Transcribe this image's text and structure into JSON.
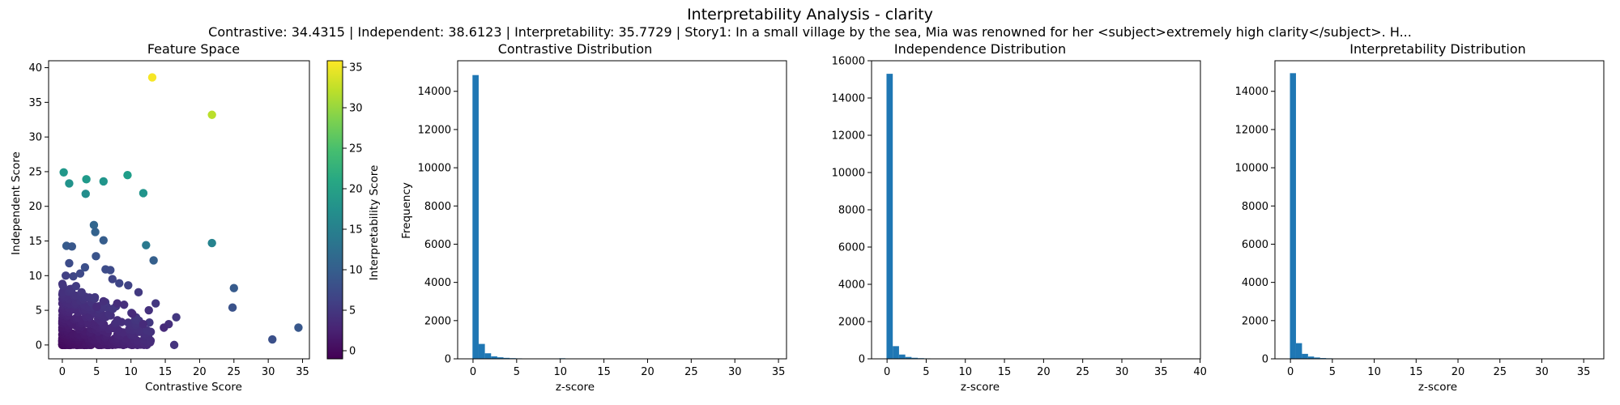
{
  "figure": {
    "title": "Interpretability Analysis - clarity",
    "subtitle": "Contrastive: 34.4315 | Independent: 38.6123 | Interpretability: 35.7729 | Story1: In a small village by the sea, Mia was renowned for her <subject>extremely high clarity</subject>. H..."
  },
  "colors": {
    "bar": "#1f77b4",
    "colormap": "viridis"
  },
  "chart_data": [
    {
      "type": "scatter",
      "title": "Feature Space",
      "xlabel": "Contrastive Score",
      "ylabel": "Independent Score",
      "xlim": [
        -2,
        36
      ],
      "ylim": [
        -2,
        41
      ],
      "xticks": [
        0,
        5,
        10,
        15,
        20,
        25,
        30,
        35
      ],
      "yticks": [
        0,
        5,
        10,
        15,
        20,
        25,
        30,
        35,
        40
      ],
      "colorbar": {
        "label": "Interpretability Score",
        "range": [
          -1,
          35.8
        ],
        "ticks": [
          0,
          5,
          10,
          15,
          20,
          25,
          30,
          35
        ]
      },
      "points": [
        [
          13.1,
          38.6,
          35.4
        ],
        [
          21.8,
          33.2,
          32.0
        ],
        [
          0.2,
          24.9,
          18.5
        ],
        [
          3.5,
          23.9,
          18.8
        ],
        [
          6.0,
          23.6,
          18.2
        ],
        [
          9.5,
          24.5,
          19.5
        ],
        [
          1.0,
          23.3,
          17.8
        ],
        [
          3.4,
          21.8,
          17.0
        ],
        [
          11.8,
          21.9,
          18.0
        ],
        [
          21.8,
          14.7,
          15.5
        ],
        [
          4.6,
          17.3,
          11.0
        ],
        [
          4.8,
          16.3,
          10.5
        ],
        [
          12.2,
          14.4,
          14.0
        ],
        [
          13.3,
          12.2,
          10.0
        ],
        [
          0.6,
          14.3,
          9.5
        ],
        [
          1.4,
          14.2,
          9.0
        ],
        [
          6.0,
          15.1,
          9.8
        ],
        [
          4.9,
          12.8,
          8.5
        ],
        [
          2.6,
          10.3,
          7.0
        ],
        [
          1.6,
          9.9,
          6.8
        ],
        [
          6.3,
          10.9,
          7.4
        ],
        [
          7.0,
          10.8,
          7.3
        ],
        [
          8.3,
          8.9,
          6.6
        ],
        [
          9.6,
          8.6,
          6.3
        ],
        [
          11.1,
          7.6,
          5.2
        ],
        [
          7.3,
          9.5,
          6.5
        ],
        [
          25.0,
          8.2,
          9.5
        ],
        [
          24.8,
          5.4,
          8.3
        ],
        [
          30.6,
          0.8,
          8.0
        ],
        [
          34.4,
          2.5,
          9.0
        ],
        [
          16.6,
          4.0,
          5.0
        ],
        [
          15.5,
          3.0,
          4.0
        ],
        [
          16.3,
          0.0,
          4.5
        ],
        [
          13.6,
          6.0,
          5.0
        ],
        [
          12.6,
          5.0,
          4.2
        ],
        [
          11.8,
          3.0,
          3.5
        ],
        [
          14.8,
          2.5,
          3.5
        ],
        [
          10.2,
          4.5,
          3.5
        ],
        [
          9.0,
          5.8,
          4.0
        ],
        [
          8.0,
          6.0,
          3.8
        ],
        [
          6.0,
          6.3,
          4.0
        ],
        [
          5.0,
          5.5,
          3.5
        ],
        [
          0.5,
          10.0,
          6.0
        ],
        [
          1.0,
          11.8,
          7.5
        ],
        [
          3.3,
          11.2,
          7.8
        ],
        [
          2.0,
          8.5,
          5.5
        ]
      ],
      "cluster": {
        "x_range": [
          0,
          13
        ],
        "y_range": [
          0,
          9
        ],
        "count": 450,
        "z_range": [
          0,
          6
        ]
      }
    },
    {
      "type": "bar",
      "title": "Contrastive Distribution",
      "xlabel": "z-score",
      "ylabel": "Frequency",
      "xlim": [
        -1.76,
        35.92
      ],
      "ylim": [
        0,
        15600
      ],
      "xticks": [
        0,
        5,
        10,
        15,
        20,
        25,
        30,
        35
      ],
      "yticks": [
        0,
        2000,
        4000,
        6000,
        8000,
        10000,
        12000,
        14000
      ],
      "bin_start": -0.06,
      "bin_width": 0.71,
      "values": [
        14850,
        780,
        290,
        130,
        80,
        50,
        35,
        25,
        18,
        14,
        9,
        7,
        5,
        4,
        30,
        3,
        2,
        2,
        2,
        1,
        1,
        1,
        1,
        1,
        1,
        1,
        1,
        1,
        1,
        1,
        1,
        1,
        1,
        1,
        1,
        1,
        1,
        1,
        1,
        1,
        1,
        1,
        1,
        1,
        1,
        1,
        1,
        1,
        1,
        1
      ]
    },
    {
      "type": "bar",
      "title": "Independence Distribution",
      "xlabel": "z-score",
      "ylabel": "",
      "xlim": [
        -1.98,
        40.04
      ],
      "ylim": [
        0,
        16000
      ],
      "xticks": [
        0,
        5,
        10,
        15,
        20,
        25,
        30,
        35,
        40
      ],
      "yticks": [
        0,
        2000,
        4000,
        6000,
        8000,
        10000,
        12000,
        14000,
        16000
      ],
      "bin_start": -0.07,
      "bin_width": 0.8,
      "values": [
        15300,
        680,
        230,
        100,
        55,
        35,
        25,
        18,
        13,
        9,
        6,
        5,
        4,
        3,
        2,
        2,
        2,
        1,
        1,
        1,
        1,
        1,
        1,
        1,
        1,
        1,
        1,
        1,
        1,
        1,
        1,
        1,
        1,
        1,
        1,
        1,
        1,
        1,
        1,
        1,
        1,
        1,
        1,
        1,
        1,
        1,
        1,
        1,
        1,
        1
      ]
    },
    {
      "type": "bar",
      "title": "Interpretability Distribution",
      "xlabel": "z-score",
      "ylabel": "",
      "xlim": [
        -1.85,
        37.4
      ],
      "ylim": [
        0,
        15600
      ],
      "xticks": [
        0,
        5,
        10,
        15,
        20,
        25,
        30,
        35
      ],
      "yticks": [
        0,
        2000,
        4000,
        6000,
        8000,
        10000,
        12000,
        14000
      ],
      "bin_start": -0.06,
      "bin_width": 0.72,
      "values": [
        14950,
        820,
        260,
        120,
        70,
        40,
        28,
        20,
        14,
        11,
        8,
        6,
        4,
        3,
        2,
        2,
        2,
        1,
        1,
        1,
        1,
        1,
        1,
        1,
        1,
        1,
        1,
        1,
        1,
        1,
        1,
        1,
        1,
        1,
        1,
        1,
        1,
        1,
        1,
        1,
        1,
        1,
        1,
        1,
        1,
        1,
        1,
        1,
        1,
        1
      ]
    }
  ]
}
